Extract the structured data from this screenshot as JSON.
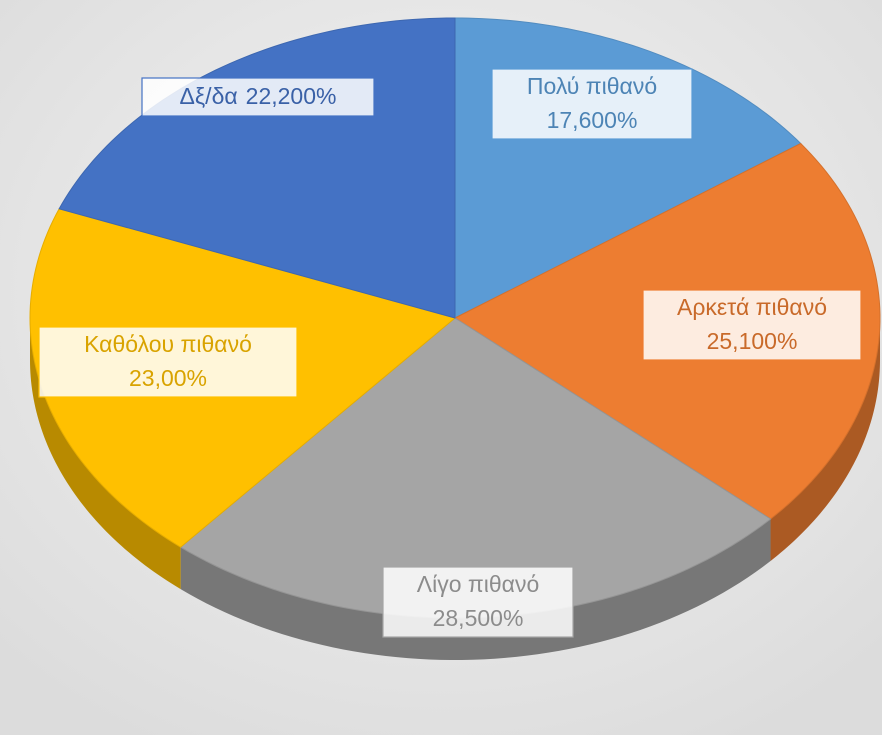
{
  "chart_data": {
    "type": "pie",
    "categories": [
      "Πολύ πιθανό",
      "Αρκετά πιθανό",
      "Λίγο πιθανό",
      "Καθόλου πιθανό",
      "Δξ/δα"
    ],
    "values": [
      17.6,
      25.1,
      28.5,
      23.0,
      22.2
    ],
    "value_labels": [
      "17,600%",
      "25,100%",
      "28,500%",
      "23,00%",
      "22,200%"
    ],
    "colors": [
      "#5b9bd5",
      "#ed7d31",
      "#a5a5a5",
      "#ffc000",
      "#4472c4"
    ]
  }
}
